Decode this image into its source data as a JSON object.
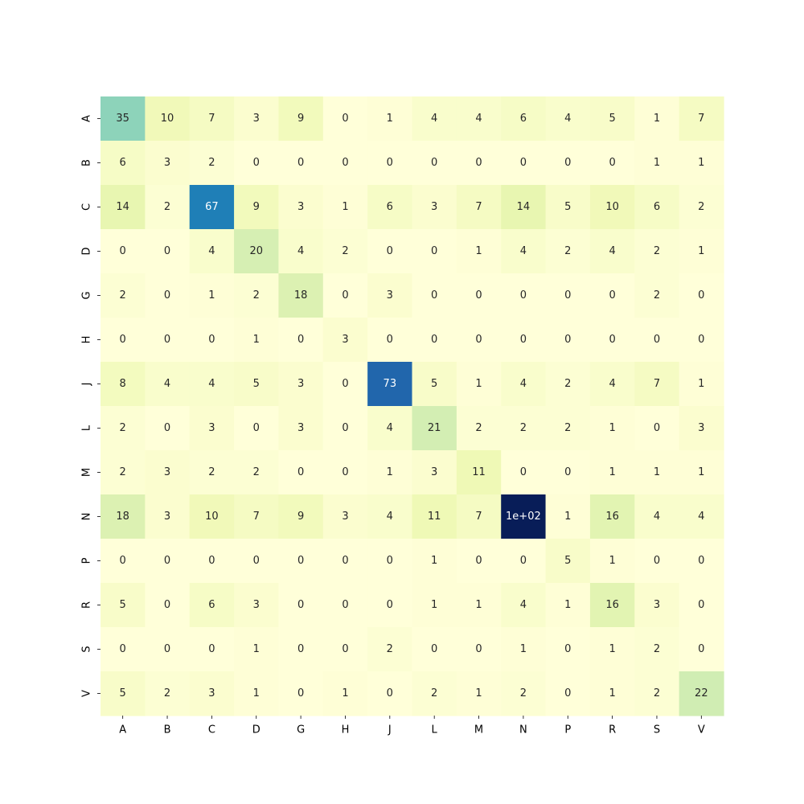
{
  "chart_data": {
    "type": "heatmap",
    "title": "",
    "xlabel": "",
    "ylabel": "",
    "x_categories": [
      "A",
      "B",
      "C",
      "D",
      "G",
      "H",
      "J",
      "L",
      "M",
      "N",
      "P",
      "R",
      "S",
      "V"
    ],
    "y_categories": [
      "A",
      "B",
      "C",
      "D",
      "G",
      "H",
      "J",
      "L",
      "M",
      "N",
      "P",
      "R",
      "S",
      "V"
    ],
    "values": [
      [
        35,
        10,
        7,
        3,
        9,
        0,
        1,
        4,
        4,
        6,
        4,
        5,
        1,
        7
      ],
      [
        6,
        3,
        2,
        0,
        0,
        0,
        0,
        0,
        0,
        0,
        0,
        0,
        1,
        1
      ],
      [
        14,
        2,
        67,
        9,
        3,
        1,
        6,
        3,
        7,
        14,
        5,
        10,
        6,
        2
      ],
      [
        0,
        0,
        4,
        20,
        4,
        2,
        0,
        0,
        1,
        4,
        2,
        4,
        2,
        1
      ],
      [
        2,
        0,
        1,
        2,
        18,
        0,
        3,
        0,
        0,
        0,
        0,
        0,
        2,
        0
      ],
      [
        0,
        0,
        0,
        1,
        0,
        3,
        0,
        0,
        0,
        0,
        0,
        0,
        0,
        0
      ],
      [
        8,
        4,
        4,
        5,
        3,
        0,
        73,
        5,
        1,
        4,
        2,
        4,
        7,
        1
      ],
      [
        2,
        0,
        3,
        0,
        3,
        0,
        4,
        21,
        2,
        2,
        2,
        1,
        0,
        3
      ],
      [
        2,
        3,
        2,
        2,
        0,
        0,
        1,
        3,
        11,
        0,
        0,
        1,
        1,
        1
      ],
      [
        18,
        3,
        10,
        7,
        9,
        3,
        4,
        11,
        7,
        100,
        1,
        16,
        4,
        4
      ],
      [
        0,
        0,
        0,
        0,
        0,
        0,
        0,
        1,
        0,
        0,
        5,
        1,
        0,
        0
      ],
      [
        5,
        0,
        6,
        3,
        0,
        0,
        0,
        1,
        1,
        4,
        1,
        16,
        3,
        0
      ],
      [
        0,
        0,
        0,
        1,
        0,
        0,
        2,
        0,
        0,
        1,
        0,
        1,
        2,
        0
      ],
      [
        5,
        2,
        3,
        1,
        0,
        1,
        0,
        2,
        1,
        2,
        0,
        1,
        2,
        22
      ]
    ],
    "labels": [
      [
        "35",
        "10",
        "7",
        "3",
        "9",
        "0",
        "1",
        "4",
        "4",
        "6",
        "4",
        "5",
        "1",
        "7"
      ],
      [
        "6",
        "3",
        "2",
        "0",
        "0",
        "0",
        "0",
        "0",
        "0",
        "0",
        "0",
        "0",
        "1",
        "1"
      ],
      [
        "14",
        "2",
        "67",
        "9",
        "3",
        "1",
        "6",
        "3",
        "7",
        "14",
        "5",
        "10",
        "6",
        "2"
      ],
      [
        "0",
        "0",
        "4",
        "20",
        "4",
        "2",
        "0",
        "0",
        "1",
        "4",
        "2",
        "4",
        "2",
        "1"
      ],
      [
        "2",
        "0",
        "1",
        "2",
        "18",
        "0",
        "3",
        "0",
        "0",
        "0",
        "0",
        "0",
        "2",
        "0"
      ],
      [
        "0",
        "0",
        "0",
        "1",
        "0",
        "3",
        "0",
        "0",
        "0",
        "0",
        "0",
        "0",
        "0",
        "0"
      ],
      [
        "8",
        "4",
        "4",
        "5",
        "3",
        "0",
        "73",
        "5",
        "1",
        "4",
        "2",
        "4",
        "7",
        "1"
      ],
      [
        "2",
        "0",
        "3",
        "0",
        "3",
        "0",
        "4",
        "21",
        "2",
        "2",
        "2",
        "1",
        "0",
        "3"
      ],
      [
        "2",
        "3",
        "2",
        "2",
        "0",
        "0",
        "1",
        "3",
        "11",
        "0",
        "0",
        "1",
        "1",
        "1"
      ],
      [
        "18",
        "3",
        "10",
        "7",
        "9",
        "3",
        "4",
        "11",
        "7",
        "1e+02",
        "1",
        "16",
        "4",
        "4"
      ],
      [
        "0",
        "0",
        "0",
        "0",
        "0",
        "0",
        "0",
        "1",
        "0",
        "0",
        "5",
        "1",
        "0",
        "0"
      ],
      [
        "5",
        "0",
        "6",
        "3",
        "0",
        "0",
        "0",
        "1",
        "1",
        "4",
        "1",
        "16",
        "3",
        "0"
      ],
      [
        "0",
        "0",
        "0",
        "1",
        "0",
        "0",
        "2",
        "0",
        "0",
        "1",
        "0",
        "1",
        "2",
        "0"
      ],
      [
        "5",
        "2",
        "3",
        "1",
        "0",
        "1",
        "0",
        "2",
        "1",
        "2",
        "0",
        "1",
        "2",
        "22"
      ]
    ],
    "colormap": "YlGnBu",
    "value_range": [
      0,
      100
    ],
    "colorbar": false,
    "grid": false
  }
}
